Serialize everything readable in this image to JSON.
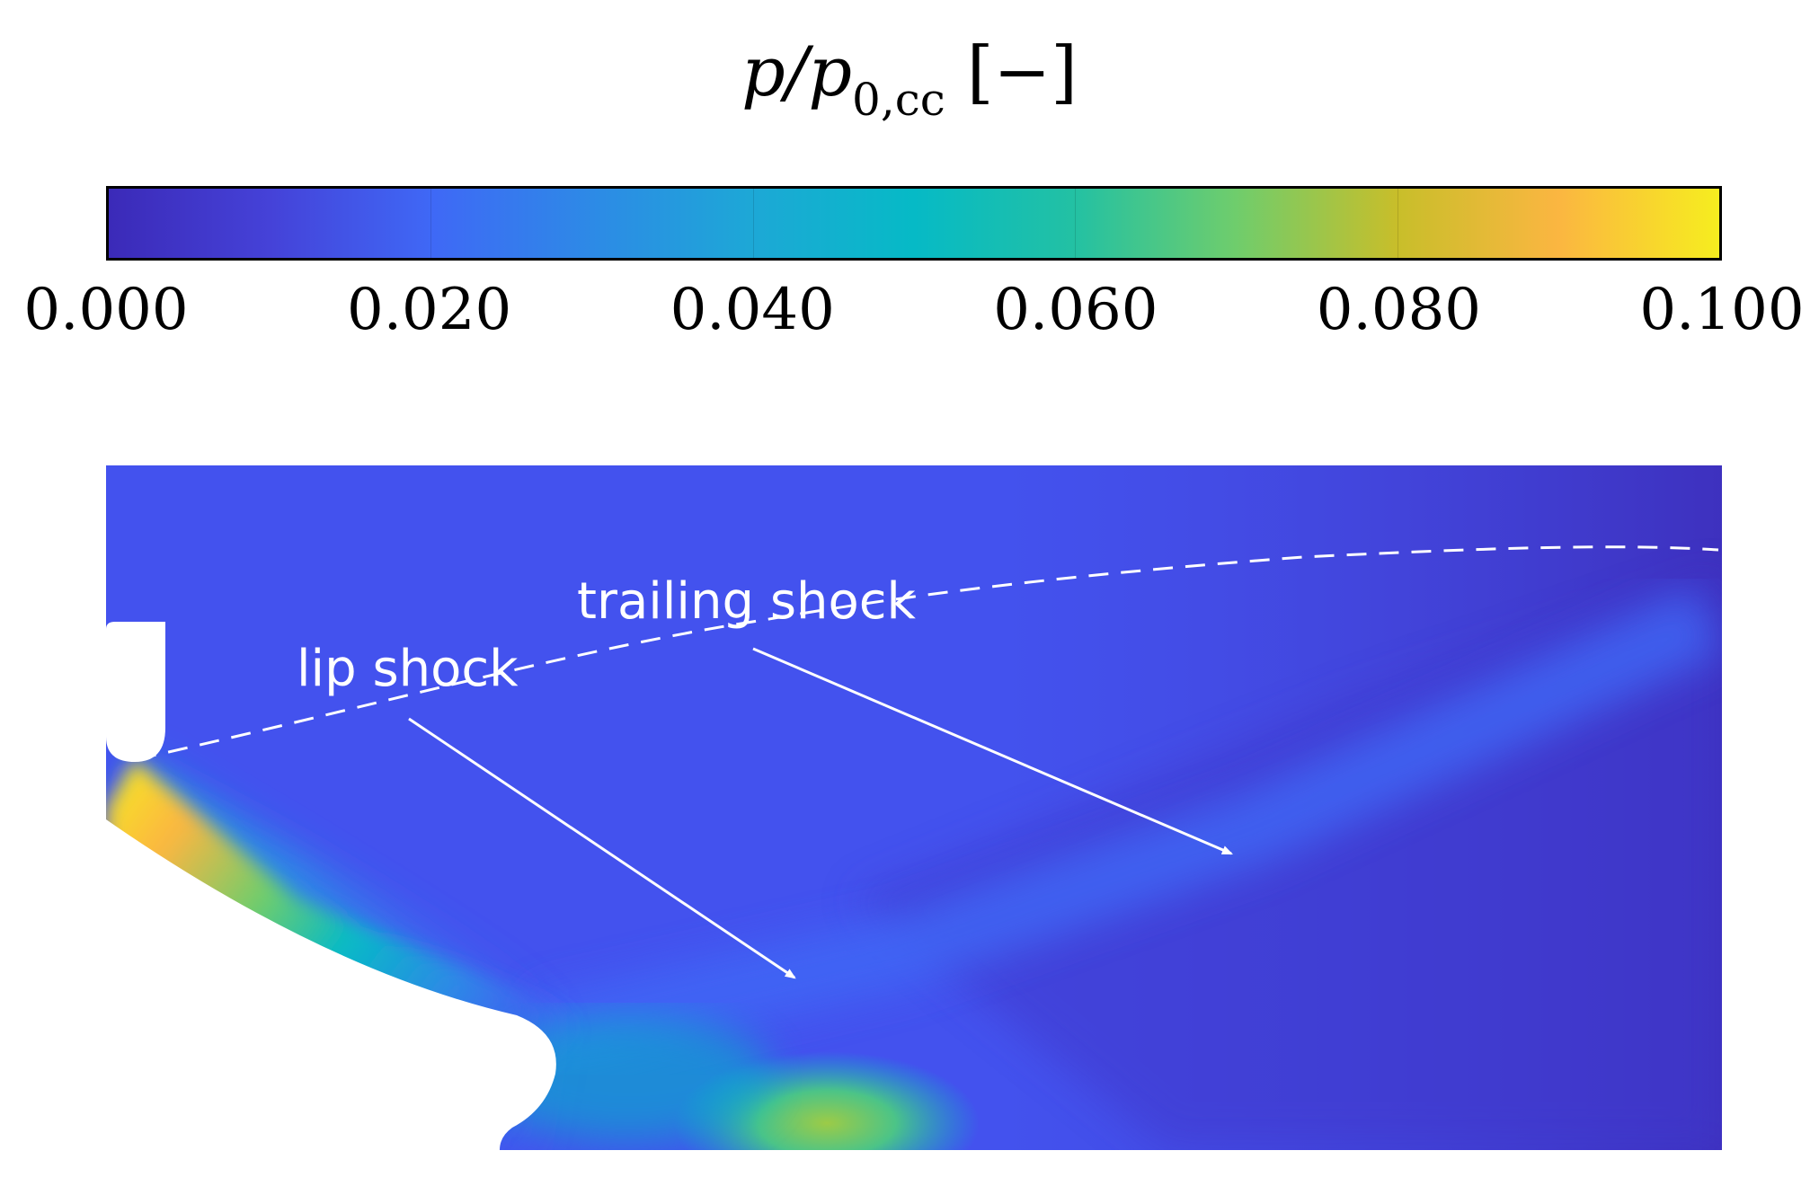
{
  "colorbar": {
    "title_symbol": "p/p",
    "title_subscript": "0,cc",
    "title_unit": "[−]",
    "ticks": [
      "0.000",
      "0.020",
      "0.040",
      "0.060",
      "0.080",
      "0.100"
    ],
    "colormap": [
      "#3b2ab8",
      "#4542d8",
      "#3f68f6",
      "#2d8ae6",
      "#1da8d6",
      "#06bac6",
      "#23c1a3",
      "#6fcd6c",
      "#c8be2a",
      "#fbb641",
      "#f6ed1f"
    ]
  },
  "annotations": {
    "lip_shock": "lip shock",
    "trailing_shock": "trailing shock"
  },
  "chart_data": {
    "type": "heatmap",
    "colorbar_range": [
      0.0,
      0.1
    ],
    "colorbar_ticks": [
      0.0,
      0.02,
      0.04,
      0.06,
      0.08,
      0.1
    ],
    "annotations": [
      "lip shock",
      "trailing shock"
    ]
  }
}
